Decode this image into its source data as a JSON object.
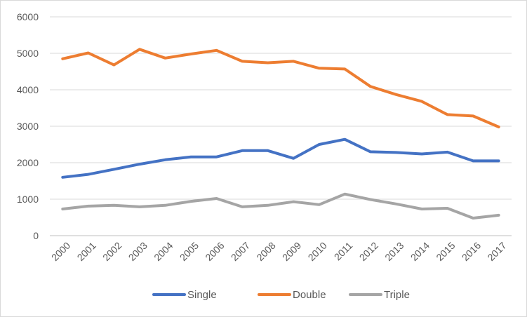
{
  "chart_data": {
    "type": "line",
    "title": "",
    "xlabel": "",
    "ylabel": "",
    "x": [
      "2000",
      "2001",
      "2002",
      "2003",
      "2004",
      "2005",
      "2006",
      "2007",
      "2008",
      "2009",
      "2010",
      "2011",
      "2012",
      "2013",
      "2014",
      "2015",
      "2016",
      "2017"
    ],
    "ylim": [
      0,
      6000
    ],
    "yticks": [
      0,
      1000,
      2000,
      3000,
      4000,
      5000,
      6000
    ],
    "grid": true,
    "legend_position": "bottom",
    "series": [
      {
        "name": "Single",
        "color": "#4472c4",
        "values": [
          1600,
          1680,
          1820,
          1960,
          2080,
          2160,
          2160,
          2330,
          2330,
          2120,
          2500,
          2640,
          2300,
          2280,
          2240,
          2290,
          2050,
          2050
        ]
      },
      {
        "name": "Double",
        "color": "#ed7d31",
        "values": [
          4850,
          5010,
          4680,
          5110,
          4870,
          4980,
          5080,
          4780,
          4740,
          4780,
          4590,
          4570,
          4090,
          3870,
          3680,
          3320,
          3280,
          2980
        ]
      },
      {
        "name": "Triple",
        "color": "#a5a5a5",
        "values": [
          730,
          810,
          830,
          790,
          830,
          940,
          1020,
          790,
          830,
          930,
          850,
          1140,
          990,
          870,
          730,
          750,
          480,
          560
        ]
      }
    ]
  }
}
